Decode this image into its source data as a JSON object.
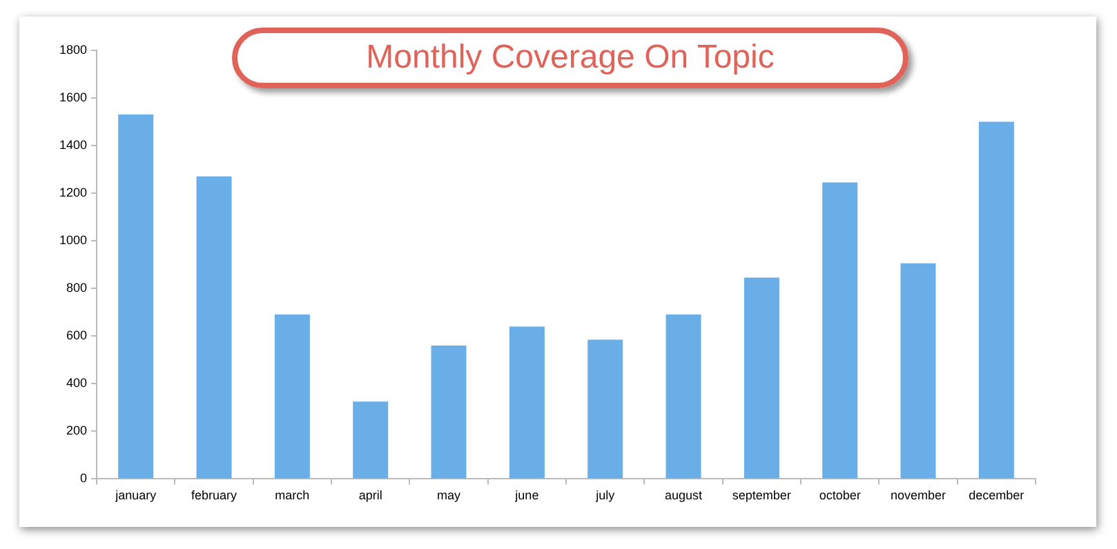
{
  "chart_data": {
    "type": "bar",
    "title": "Monthly Coverage On Topic",
    "categories": [
      "january",
      "february",
      "march",
      "april",
      "may",
      "june",
      "july",
      "august",
      "september",
      "october",
      "november",
      "december"
    ],
    "values": [
      1530,
      1270,
      690,
      325,
      560,
      640,
      585,
      690,
      845,
      1245,
      905,
      1500
    ],
    "color": "#6aaee8",
    "ylim": [
      0,
      1800
    ],
    "yticks": [
      0,
      200,
      400,
      600,
      800,
      1000,
      1200,
      1400,
      1600,
      1800
    ],
    "grid": false,
    "legend": false
  }
}
